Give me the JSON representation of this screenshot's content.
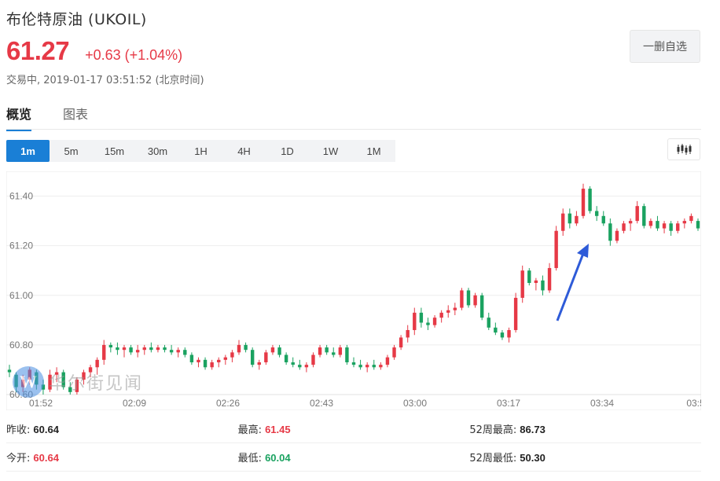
{
  "header": {
    "title": "布伦特原油 (UKOIL)",
    "price": "61.27",
    "change": "+0.63 (+1.04%)",
    "status": "交易中, 2019-01-17 03:51:52 (北京时间)",
    "watch_button": "一删自选"
  },
  "tabs": [
    {
      "label": "概览",
      "active": true
    },
    {
      "label": "图表",
      "active": false
    }
  ],
  "periods": [
    {
      "label": "1m",
      "active": true
    },
    {
      "label": "5m"
    },
    {
      "label": "15m"
    },
    {
      "label": "30m"
    },
    {
      "label": "1H"
    },
    {
      "label": "4H"
    },
    {
      "label": "1D"
    },
    {
      "label": "1W"
    },
    {
      "label": "1M"
    }
  ],
  "chart_type_icon": "candlestick-icon",
  "watermark": {
    "logo": "W",
    "text": "华尔街见闻"
  },
  "colors": {
    "up": "#e63946",
    "down": "#1aa260",
    "accent": "#1a7fd6",
    "arrow": "#2e5bd8"
  },
  "chart_data": {
    "type": "candlestick",
    "ylim": [
      60.6,
      61.5
    ],
    "yticks": [
      "61.40",
      "61.20",
      "61.00",
      "60.80",
      "60.60"
    ],
    "xticks": [
      "01:52",
      "02:09",
      "02:26",
      "02:43",
      "03:00",
      "03:17",
      "03:34",
      "03:5"
    ],
    "grid": true,
    "candles": [
      [
        60.7,
        60.72,
        60.67,
        60.69
      ],
      [
        60.68,
        60.69,
        60.61,
        60.63
      ],
      [
        60.63,
        60.68,
        60.61,
        60.66
      ],
      [
        60.66,
        60.71,
        60.64,
        60.7
      ],
      [
        60.69,
        60.7,
        60.62,
        60.64
      ],
      [
        60.64,
        60.66,
        60.6,
        60.62
      ],
      [
        60.62,
        60.7,
        60.61,
        60.68
      ],
      [
        60.68,
        60.71,
        60.65,
        60.69
      ],
      [
        60.69,
        60.7,
        60.62,
        60.63
      ],
      [
        60.63,
        60.65,
        60.6,
        60.61
      ],
      [
        60.61,
        60.67,
        60.6,
        60.66
      ],
      [
        60.66,
        60.7,
        60.64,
        60.69
      ],
      [
        60.69,
        60.72,
        60.67,
        60.71
      ],
      [
        60.71,
        60.75,
        60.68,
        60.74
      ],
      [
        60.74,
        60.82,
        60.72,
        60.8
      ],
      [
        60.8,
        60.81,
        60.77,
        60.79
      ],
      [
        60.79,
        60.81,
        60.76,
        60.78
      ],
      [
        60.78,
        60.8,
        60.75,
        60.79
      ],
      [
        60.79,
        60.8,
        60.76,
        60.77
      ],
      [
        60.77,
        60.8,
        60.75,
        60.78
      ],
      [
        60.78,
        60.8,
        60.76,
        60.79
      ],
      [
        60.79,
        60.81,
        60.77,
        60.78
      ],
      [
        60.78,
        60.8,
        60.77,
        60.79
      ],
      [
        60.79,
        60.8,
        60.77,
        60.78
      ],
      [
        60.78,
        60.8,
        60.76,
        60.77
      ],
      [
        60.77,
        60.79,
        60.75,
        60.78
      ],
      [
        60.78,
        60.79,
        60.75,
        60.76
      ],
      [
        60.76,
        60.77,
        60.72,
        60.73
      ],
      [
        60.73,
        60.75,
        60.71,
        60.74
      ],
      [
        60.74,
        60.75,
        60.7,
        60.71
      ],
      [
        60.71,
        60.74,
        60.7,
        60.73
      ],
      [
        60.73,
        60.75,
        60.71,
        60.74
      ],
      [
        60.74,
        60.76,
        60.72,
        60.75
      ],
      [
        60.75,
        60.78,
        60.73,
        60.77
      ],
      [
        60.77,
        60.82,
        60.76,
        60.8
      ],
      [
        60.8,
        60.81,
        60.77,
        60.78
      ],
      [
        60.78,
        60.79,
        60.71,
        60.72
      ],
      [
        60.72,
        60.74,
        60.7,
        60.73
      ],
      [
        60.73,
        60.78,
        60.72,
        60.77
      ],
      [
        60.77,
        60.8,
        60.76,
        60.79
      ],
      [
        60.79,
        60.8,
        60.75,
        60.76
      ],
      [
        60.76,
        60.77,
        60.72,
        60.73
      ],
      [
        60.73,
        60.75,
        60.71,
        60.72
      ],
      [
        60.72,
        60.74,
        60.7,
        60.71
      ],
      [
        60.71,
        60.73,
        60.69,
        60.72
      ],
      [
        60.72,
        60.77,
        60.71,
        60.76
      ],
      [
        60.76,
        60.8,
        60.75,
        60.79
      ],
      [
        60.79,
        60.8,
        60.76,
        60.77
      ],
      [
        60.77,
        60.79,
        60.75,
        60.76
      ],
      [
        60.76,
        60.8,
        60.75,
        60.79
      ],
      [
        60.79,
        60.8,
        60.72,
        60.73
      ],
      [
        60.73,
        60.75,
        60.71,
        60.72
      ],
      [
        60.72,
        60.74,
        60.7,
        60.71
      ],
      [
        60.71,
        60.73,
        60.69,
        60.72
      ],
      [
        60.72,
        60.74,
        60.7,
        60.71
      ],
      [
        60.71,
        60.73,
        60.7,
        60.72
      ],
      [
        60.72,
        60.76,
        60.71,
        60.75
      ],
      [
        60.75,
        60.8,
        60.74,
        60.79
      ],
      [
        60.79,
        60.84,
        60.78,
        60.83
      ],
      [
        60.83,
        60.88,
        60.81,
        60.86
      ],
      [
        60.86,
        60.95,
        60.84,
        60.93
      ],
      [
        60.93,
        60.95,
        60.87,
        60.89
      ],
      [
        60.89,
        60.91,
        60.86,
        60.88
      ],
      [
        60.88,
        60.92,
        60.87,
        60.91
      ],
      [
        60.91,
        60.94,
        60.89,
        60.93
      ],
      [
        60.93,
        60.96,
        60.91,
        60.94
      ],
      [
        60.94,
        60.97,
        60.92,
        60.95
      ],
      [
        60.95,
        61.03,
        60.94,
        61.02
      ],
      [
        61.02,
        61.03,
        60.95,
        60.96
      ],
      [
        60.96,
        61.01,
        60.95,
        61.0
      ],
      [
        61.0,
        61.01,
        60.9,
        60.91
      ],
      [
        60.91,
        60.93,
        60.86,
        60.87
      ],
      [
        60.87,
        60.89,
        60.84,
        60.85
      ],
      [
        60.85,
        60.86,
        60.82,
        60.83
      ],
      [
        60.83,
        60.87,
        60.81,
        60.86
      ],
      [
        60.86,
        61.01,
        60.85,
        60.99
      ],
      [
        60.99,
        61.12,
        60.97,
        61.1
      ],
      [
        61.1,
        61.11,
        61.04,
        61.05
      ],
      [
        61.05,
        61.07,
        61.02,
        61.06
      ],
      [
        61.06,
        61.08,
        61.0,
        61.02
      ],
      [
        61.02,
        61.13,
        61.01,
        61.11
      ],
      [
        61.11,
        61.28,
        61.1,
        61.26
      ],
      [
        61.26,
        61.35,
        61.24,
        61.33
      ],
      [
        61.33,
        61.35,
        61.27,
        61.29
      ],
      [
        61.29,
        61.34,
        61.28,
        61.32
      ],
      [
        61.32,
        61.45,
        61.31,
        61.43
      ],
      [
        61.43,
        61.44,
        61.33,
        61.34
      ],
      [
        61.34,
        61.36,
        61.3,
        61.32
      ],
      [
        61.32,
        61.34,
        61.28,
        61.29
      ],
      [
        61.29,
        61.31,
        61.2,
        61.22
      ],
      [
        61.22,
        61.27,
        61.21,
        61.26
      ],
      [
        61.26,
        61.3,
        61.25,
        61.29
      ],
      [
        61.29,
        61.31,
        61.26,
        61.3
      ],
      [
        61.3,
        61.38,
        61.29,
        61.36
      ],
      [
        61.36,
        61.37,
        61.27,
        61.28
      ],
      [
        61.28,
        61.31,
        61.27,
        61.3
      ],
      [
        61.3,
        61.32,
        61.26,
        61.27
      ],
      [
        61.27,
        61.3,
        61.25,
        61.29
      ],
      [
        61.29,
        61.3,
        61.24,
        61.26
      ],
      [
        61.26,
        61.3,
        61.25,
        61.29
      ],
      [
        61.29,
        61.31,
        61.27,
        61.3
      ],
      [
        61.3,
        61.33,
        61.29,
        61.32
      ],
      [
        61.3,
        61.31,
        61.26,
        61.27
      ]
    ],
    "annotation": "up-arrow"
  },
  "stats": [
    [
      {
        "label": "昨收:",
        "value": "60.64",
        "tone": "neutral"
      },
      {
        "label": "最高:",
        "value": "61.45",
        "tone": "up"
      },
      {
        "label": "52周最高:",
        "value": "86.73",
        "tone": "neutral"
      }
    ],
    [
      {
        "label": "今开:",
        "value": "60.64",
        "tone": "up"
      },
      {
        "label": "最低:",
        "value": "60.04",
        "tone": "down"
      },
      {
        "label": "52周最低:",
        "value": "50.30",
        "tone": "neutral"
      }
    ]
  ]
}
